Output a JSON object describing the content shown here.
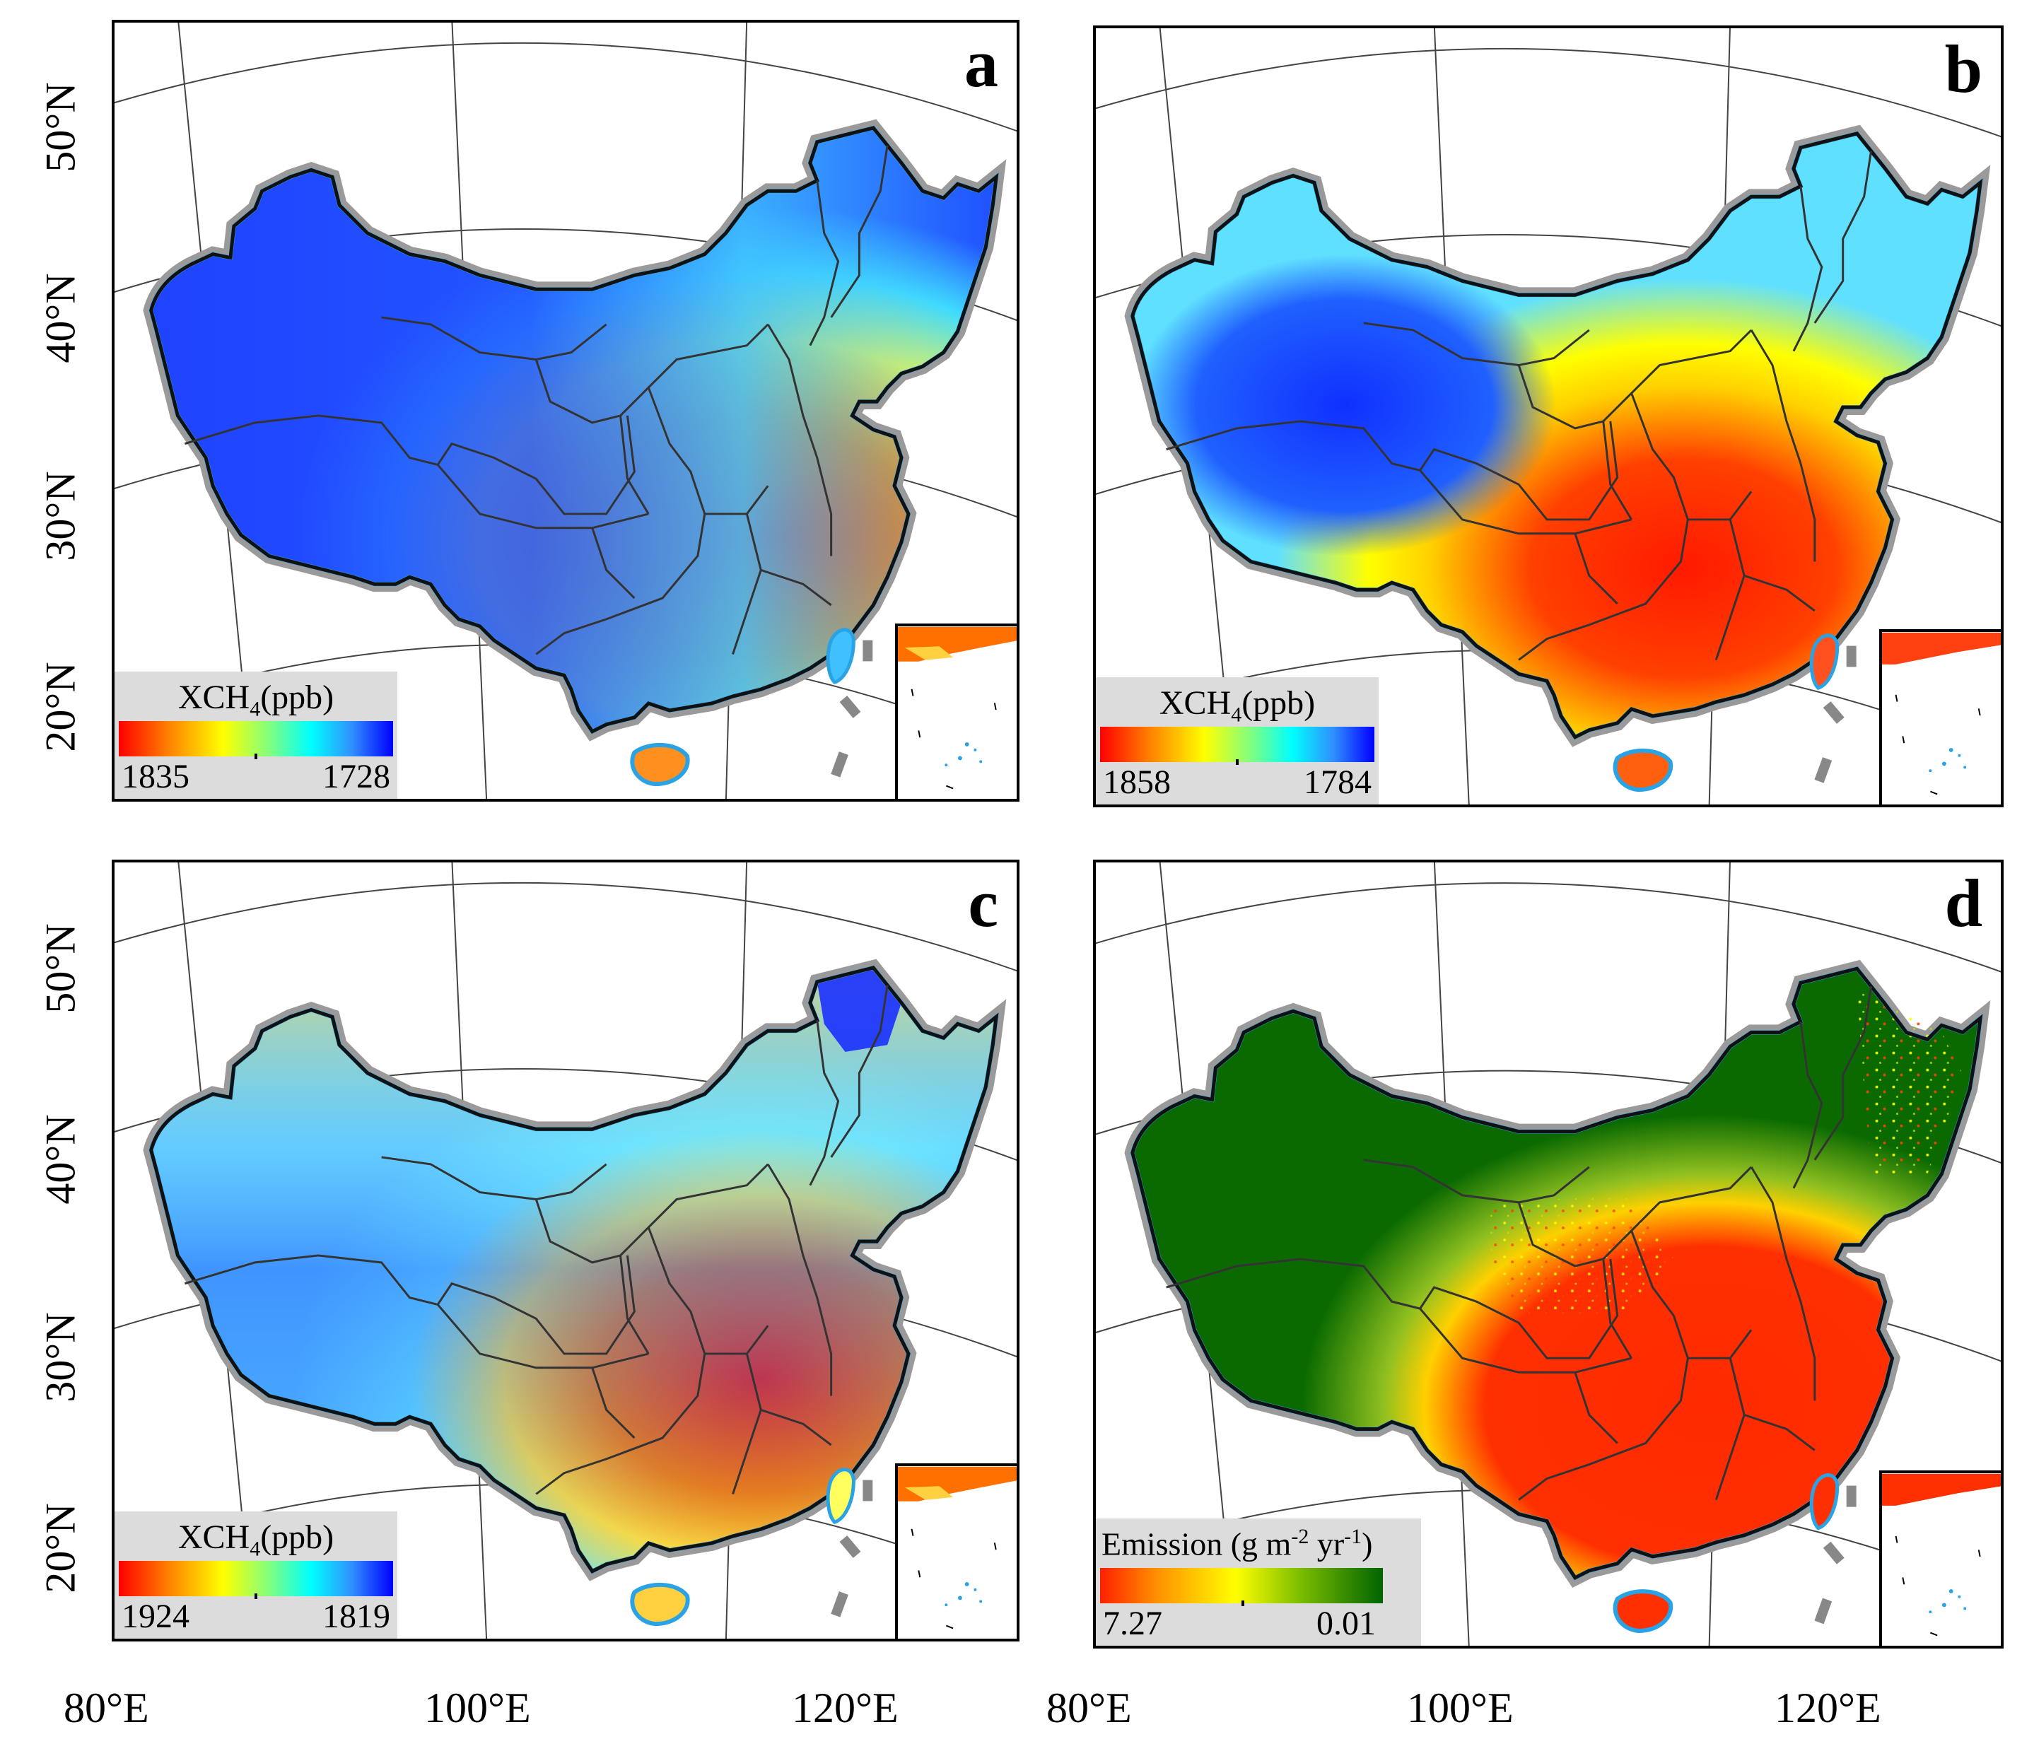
{
  "panels": [
    {
      "letter": "a",
      "legend_title": "XCH",
      "legend_sub": "4",
      "legend_unit": "(ppb)",
      "legend_min": "1835",
      "legend_max": "1728",
      "color_scale": "rainbow"
    },
    {
      "letter": "b",
      "legend_title": "XCH",
      "legend_sub": "4",
      "legend_unit": "(ppb)",
      "legend_min": "1858",
      "legend_max": "1784",
      "color_scale": "rainbow"
    },
    {
      "letter": "c",
      "legend_title": "XCH",
      "legend_sub": "4",
      "legend_unit": "(ppb)",
      "legend_min": "1924",
      "legend_max": "1819",
      "color_scale": "rainbow"
    },
    {
      "letter": "d",
      "legend_title": "Emission (g m",
      "legend_sup1": "-2",
      "legend_mid": " yr",
      "legend_sup2": "-1",
      "legend_end": ")",
      "legend_min": "7.27",
      "legend_max": "0.01",
      "color_scale": "red-yellow-green"
    }
  ],
  "axes": {
    "latitude_labels": [
      "50°N",
      "40°N",
      "30°N",
      "20°N"
    ],
    "longitude_labels": [
      "80°E",
      "100°E",
      "120°E"
    ]
  },
  "colors": {
    "high": "#ff0000",
    "mid": "#ffff00",
    "low": "#0000ff",
    "vegetation_low": "#006400",
    "coast": "#29a3e6",
    "border_halo": "#9a9a9a"
  }
}
